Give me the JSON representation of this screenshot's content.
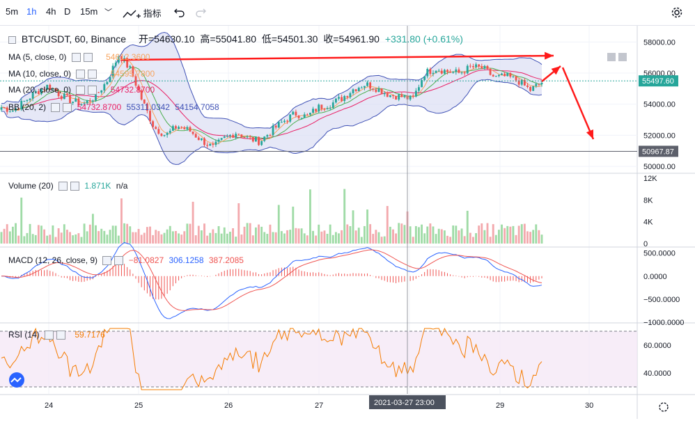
{
  "toolbar": {
    "intervals": [
      "5m",
      "1h",
      "4h",
      "D",
      "15m"
    ],
    "active_interval": "1h",
    "dropdown_glyph": "﹀",
    "indicators_label": "指标"
  },
  "header": {
    "symbol": "BTC/USDT, 60, Binance",
    "open": "开=54630.10",
    "high": "高=55041.80",
    "low": "低=54501.30",
    "close": "收=54961.90",
    "change": "+331.80 (+0.61%)"
  },
  "legends": {
    "ma5": {
      "label": "MA (5, close, 0)",
      "value": "54612.3600"
    },
    "ma10": {
      "label": "MA (10, close, 0)",
      "value": "54595.7800"
    },
    "ma20": {
      "label": "MA (20, close, 0)",
      "value": "54732.8700"
    },
    "bb": {
      "label": "BB (20, 2)",
      "v1": "54732.8700",
      "v2": "55311.0342",
      "v3": "54154.7058"
    },
    "volume": {
      "label": "Volume (20)",
      "v1": "1.871K",
      "v2": "n/a"
    },
    "macd": {
      "label": "MACD (12, 26, close, 9)",
      "v1": "−81.0827",
      "v2": "306.1258",
      "v3": "387.2085"
    },
    "rsi": {
      "label": "RSI (14)",
      "v1": "59.7176"
    }
  },
  "price_labels": {
    "current": "55497.60",
    "marker": "50967.87"
  },
  "x_ticks": [
    "24",
    "25",
    "26",
    "27",
    "28",
    "29",
    "30"
  ],
  "crosshair_label": "2021-03-27  23:00",
  "colors": {
    "up": "#26a69a",
    "down": "#ef5350",
    "ma5": "#f7a35c",
    "ma10": "#4caf50",
    "ma20": "#e91e63",
    "bb": "#3f51b5",
    "bb_fill": "#d6d9f2",
    "macd": "#2962ff",
    "signal": "#ef5350",
    "rsi": "#f57c00",
    "arrow": "#ff1a1a"
  },
  "chart_data": [
    {
      "type": "candlestick",
      "title": "BTC/USDT, 60, Binance",
      "y_ticks": [
        58000,
        56000,
        54000,
        52000,
        50000
      ],
      "ylim": [
        49600,
        59000
      ],
      "x_days": [
        "24",
        "25",
        "26",
        "27",
        "28",
        "29",
        "30"
      ],
      "close_path": [
        53800,
        53600,
        54200,
        54800,
        55200,
        54600,
        54200,
        54000,
        54500,
        55500,
        57200,
        56200,
        54200,
        52500,
        52000,
        52600,
        52300,
        51700,
        51200,
        51800,
        52200,
        51800,
        51600,
        52300,
        52900,
        53400,
        53200,
        53800,
        54000,
        54400,
        55000,
        55300,
        55000,
        54600,
        54500,
        54300,
        56000,
        56300,
        56100,
        56000,
        56400,
        56300,
        55700,
        55800,
        55500,
        54900,
        55400
      ]
    },
    {
      "type": "bar",
      "title": "Volume (20)",
      "y_ticks": [
        "12K",
        "8K",
        "4K",
        "0"
      ],
      "ylim": [
        0,
        12000
      ]
    },
    {
      "type": "line",
      "title": "MACD (12, 26, close, 9)",
      "y_ticks": [
        "500.0000",
        "0.0000",
        "−500.0000",
        "−1000.0000"
      ],
      "ylim": [
        -1000,
        600
      ]
    },
    {
      "type": "line",
      "title": "RSI (14)",
      "y_ticks": [
        "60.0000",
        "40.0000"
      ],
      "ylim": [
        25,
        75
      ],
      "bands": [
        70,
        30
      ]
    }
  ]
}
